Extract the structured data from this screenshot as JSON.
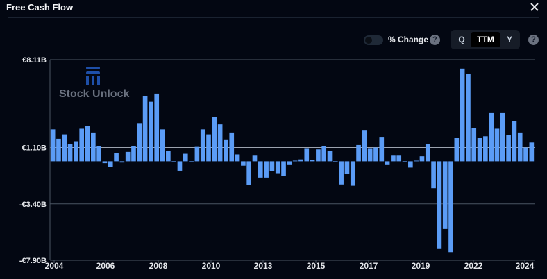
{
  "header": {
    "title": "Free Cash Flow"
  },
  "controls": {
    "pct_label": "% Change",
    "help_glyph": "?",
    "segments": [
      "Q",
      "TTM",
      "Y"
    ],
    "active_segment": "TTM"
  },
  "watermark": {
    "text": "Stock Unlock"
  },
  "colors": {
    "bar": "#5b9cf6",
    "background": "#030712",
    "grid": "#4b5563"
  },
  "chart_data": {
    "type": "bar",
    "title": "Free Cash Flow",
    "xlabel": "",
    "ylabel": "",
    "y_ticks": [
      {
        "label": "€8.11B",
        "value": 8.11
      },
      {
        "label": "€1.10B",
        "value": 1.1
      },
      {
        "label": "-€3.40B",
        "value": -3.4
      },
      {
        "label": "-€7.90B",
        "value": -7.9
      }
    ],
    "ylim": [
      -7.9,
      8.11
    ],
    "grid": true,
    "x_ticks": [
      "2004",
      "2006",
      "2008",
      "2010",
      "2013",
      "2015",
      "2017",
      "2019",
      "2022",
      "2024"
    ],
    "x_range": [
      "2004",
      "2024"
    ],
    "values": [
      2.55,
      1.8,
      2.15,
      1.4,
      1.6,
      2.6,
      2.8,
      2.3,
      1.2,
      -0.15,
      -0.45,
      0.65,
      -0.1,
      0.75,
      1.2,
      3.05,
      5.2,
      4.75,
      5.4,
      2.55,
      0.85,
      -0.05,
      -0.75,
      0.6,
      -0.05,
      1.15,
      2.55,
      2.15,
      3.55,
      2.95,
      1.75,
      2.3,
      0.55,
      -0.35,
      -1.9,
      0.45,
      -1.3,
      -1.3,
      -0.8,
      -0.95,
      -1.15,
      -0.3,
      0.05,
      0.15,
      1.05,
      0.1,
      0.95,
      1.2,
      0.85,
      -0.05,
      -1.85,
      -1.0,
      -1.95,
      1.3,
      2.45,
      1.05,
      1.1,
      1.9,
      -0.3,
      0.45,
      0.45,
      0.0,
      -0.5,
      0.05,
      0.4,
      1.4,
      -2.15,
      -7.0,
      -5.4,
      -7.25,
      1.85,
      7.4,
      7.0,
      2.65,
      1.85,
      2.0,
      3.85,
      2.6,
      3.85,
      2.1,
      3.2,
      2.3,
      1.1,
      1.5
    ]
  }
}
